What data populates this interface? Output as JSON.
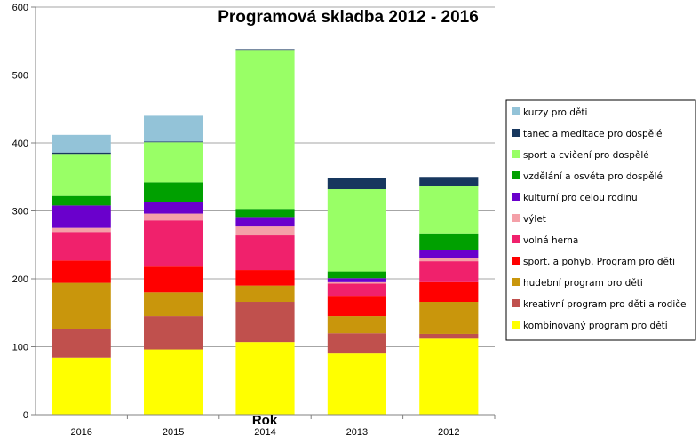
{
  "chart_data": {
    "type": "bar",
    "stacked": true,
    "title": "Programová skladba 2012 - 2016",
    "xlabel": "Rok",
    "ylabel": "",
    "ylim": [
      0,
      600
    ],
    "yticks": [
      0,
      100,
      200,
      300,
      400,
      500,
      600
    ],
    "grid": true,
    "legend_position": "right",
    "categories": [
      "2016",
      "2015",
      "2014",
      "2013",
      "2012"
    ],
    "series": [
      {
        "name": "kombinovaný program pro děti",
        "color": "#FFFF00",
        "values": [
          84,
          96,
          107,
          90,
          112
        ]
      },
      {
        "name": "kreativní program pro děti a rodiče",
        "color": "#C0504D",
        "values": [
          42,
          49,
          59,
          30,
          7
        ]
      },
      {
        "name": "hudební program pro děti",
        "color": "#C9960C",
        "values": [
          68,
          35,
          24,
          25,
          47
        ]
      },
      {
        "name": "sport. a pohyb. Program pro děti",
        "color": "#FF0000",
        "values": [
          33,
          38,
          23,
          30,
          29
        ]
      },
      {
        "name": "volná herna",
        "color": "#F0216C",
        "values": [
          42,
          68,
          51,
          18,
          31
        ]
      },
      {
        "name": "výlet",
        "color": "#F4A0A8",
        "values": [
          6,
          10,
          13,
          2,
          5
        ]
      },
      {
        "name": "kulturní pro celou rodinu",
        "color": "#6A00CC",
        "values": [
          33,
          17,
          14,
          6,
          11
        ]
      },
      {
        "name": "vzdělání a osvěta pro dospělé",
        "color": "#00A000",
        "values": [
          14,
          29,
          12,
          10,
          25
        ]
      },
      {
        "name": "sport a cvičení pro dospělé",
        "color": "#99FF66",
        "values": [
          62,
          59,
          234,
          121,
          69
        ]
      },
      {
        "name": "tanec a meditace pro dospělé",
        "color": "#17375E",
        "values": [
          2,
          1,
          1,
          17,
          14
        ]
      },
      {
        "name": "kurzy pro děti",
        "color": "#93C3D8",
        "values": [
          26,
          38,
          0,
          0,
          0
        ]
      }
    ]
  }
}
